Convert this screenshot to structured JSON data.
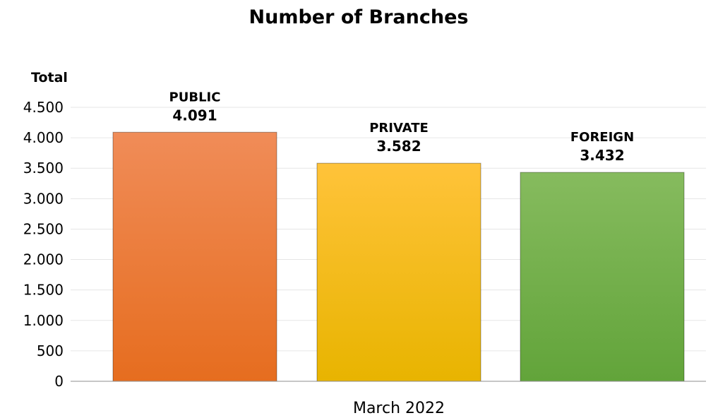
{
  "chart_data": {
    "type": "bar",
    "title": "Number of Branches",
    "ylabel": "Total",
    "xlabel": "March 2022",
    "ylim": [
      0,
      4500
    ],
    "yticks": [
      0,
      500,
      1000,
      1500,
      2000,
      2500,
      3000,
      3500,
      4000,
      4500
    ],
    "ytick_labels": [
      "0",
      "500",
      "1.000",
      "1.500",
      "2.000",
      "2.500",
      "3.000",
      "3.500",
      "4.000",
      "4.500"
    ],
    "grid": true,
    "categories": [
      "PUBLIC",
      "PRIVATE",
      "FOREIGN"
    ],
    "values": [
      4091,
      3582,
      3432
    ],
    "value_labels": [
      "4.091",
      "3.582",
      "3.432"
    ],
    "colors": [
      {
        "top": "#f08c58",
        "bottom": "#e66d1f"
      },
      {
        "top": "#ffc33a",
        "bottom": "#e8b400"
      },
      {
        "top": "#86bb5e",
        "bottom": "#62a43a"
      }
    ]
  }
}
